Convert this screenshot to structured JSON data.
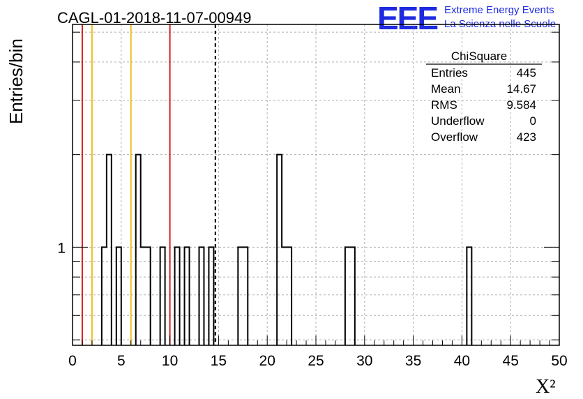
{
  "header": {
    "title": "CAGL-01-2018-11-07-00949",
    "logo_mark": "EEE",
    "logo_line1": "Extreme Energy Events",
    "logo_line2": "La Scienza nelle Scuole"
  },
  "stats": {
    "name": "ChiSquare",
    "rows": [
      {
        "label": "Entries",
        "value": "445"
      },
      {
        "label": "Mean",
        "value": "14.67"
      },
      {
        "label": "RMS",
        "value": "9.584"
      },
      {
        "label": "Underflow",
        "value": "0"
      },
      {
        "label": "Overflow",
        "value": "423"
      }
    ]
  },
  "colors": {
    "histogram": "#000000",
    "red_line": "#d42020",
    "yellow_line": "#f0c020",
    "grid": "#b0b0b0",
    "logo": "#1e2be0"
  },
  "chart_data": {
    "type": "bar",
    "title": "CAGL-01-2018-11-07-00949",
    "xlabel": "X²",
    "ylabel": "Entries/bin",
    "xlim": [
      0,
      50
    ],
    "y_scale": "log",
    "ylim": [
      0.48,
      5.3
    ],
    "x_tick_labels": [
      "0",
      "5",
      "10",
      "15",
      "20",
      "25",
      "30",
      "35",
      "40",
      "45",
      "50"
    ],
    "y_tick_labels": [
      "1"
    ],
    "grid": true,
    "bin_width": 0.5,
    "bins": [
      {
        "x": 3.0,
        "count": 1
      },
      {
        "x": 3.5,
        "count": 2
      },
      {
        "x": 4.5,
        "count": 1
      },
      {
        "x": 6.5,
        "count": 2
      },
      {
        "x": 7.0,
        "count": 1
      },
      {
        "x": 7.5,
        "count": 1
      },
      {
        "x": 9.0,
        "count": 1
      },
      {
        "x": 10.5,
        "count": 1
      },
      {
        "x": 11.5,
        "count": 1
      },
      {
        "x": 13.0,
        "count": 1
      },
      {
        "x": 14.0,
        "count": 1
      },
      {
        "x": 17.0,
        "count": 1
      },
      {
        "x": 17.5,
        "count": 1
      },
      {
        "x": 21.0,
        "count": 2
      },
      {
        "x": 21.5,
        "count": 1
      },
      {
        "x": 22.0,
        "count": 1
      },
      {
        "x": 28.0,
        "count": 1
      },
      {
        "x": 28.5,
        "count": 1
      },
      {
        "x": 40.5,
        "count": 1
      }
    ],
    "markers": [
      {
        "x": 1.0,
        "color": "red"
      },
      {
        "x": 2.0,
        "color": "yellow"
      },
      {
        "x": 6.0,
        "color": "yellow"
      },
      {
        "x": 10.0,
        "color": "red"
      },
      {
        "x": 14.67,
        "color": "black",
        "dashed": true
      }
    ],
    "legend": "top-right"
  }
}
